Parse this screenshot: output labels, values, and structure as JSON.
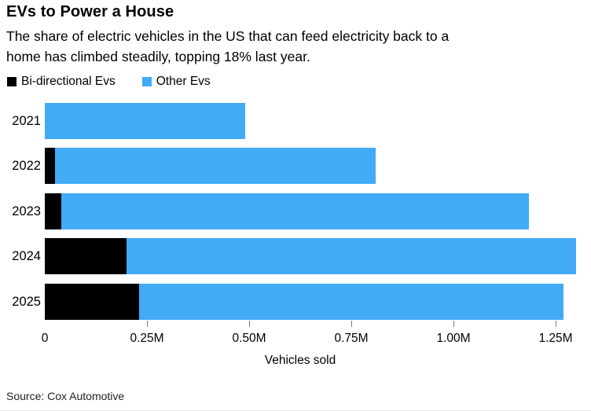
{
  "header": {
    "title": "EVs to Power a House",
    "subtitle_lines": [
      "The share of electric vehicles in the US that can feed electricity back to a",
      "home has climbed steadily, topping 18% last year."
    ]
  },
  "legend": [
    {
      "label": "Bi-directional Evs",
      "color": "#000000"
    },
    {
      "label": "Other Evs",
      "color": "#42abf5"
    }
  ],
  "chart_data": {
    "type": "bar",
    "orientation": "horizontal",
    "stacked": true,
    "title": "EVs to Power a House",
    "categories": [
      "2021",
      "2022",
      "2023",
      "2024",
      "2025"
    ],
    "series": [
      {
        "name": "Bi-directional Evs",
        "color": "#000000",
        "values": [
          0,
          0.025,
          0.04,
          0.2,
          0.23
        ]
      },
      {
        "name": "Other Evs",
        "color": "#42abf5",
        "values": [
          0.49,
          0.785,
          1.145,
          1.1,
          1.04
        ]
      }
    ],
    "totals_m": [
      0.49,
      0.81,
      1.185,
      1.3,
      1.27
    ],
    "xlabel": "Vehicles sold",
    "ylabel": "",
    "xlim": [
      0,
      1.3365
    ],
    "x_ticks": [
      {
        "value": 0,
        "label": "0",
        "mark": false
      },
      {
        "value": 0.25,
        "label": "0.25M",
        "mark": true
      },
      {
        "value": 0.5,
        "label": "0.50M",
        "mark": true
      },
      {
        "value": 0.75,
        "label": "0.75M",
        "mark": true
      },
      {
        "value": 1.0,
        "label": "1.00M",
        "mark": true
      },
      {
        "value": 1.25,
        "label": "1.25M",
        "mark": true
      }
    ],
    "grid": false,
    "legend_position": "top",
    "tick_color": "#7d7d7d"
  },
  "source": "Source: Cox Automotive"
}
